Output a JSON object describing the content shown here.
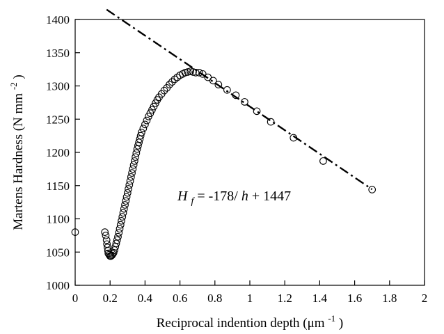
{
  "chart_data": {
    "type": "scatter",
    "title": "",
    "xlabel": {
      "main": "Reciprocal indention depth (μm",
      "sup": "-1",
      "tail": ")"
    },
    "ylabel": {
      "main": "Martens Hardness (N mm",
      "sup": "-2",
      "tail": ")"
    },
    "xlim": [
      0,
      2
    ],
    "ylim": [
      1000,
      1400
    ],
    "x_ticks": [
      0,
      0.2,
      0.4,
      0.6,
      0.8,
      1,
      1.2,
      1.4,
      1.6,
      1.8,
      2
    ],
    "x_tick_labels": [
      "0",
      "0.2",
      "0.4",
      "0.6",
      "0.8",
      "1",
      "1.2",
      "1.4",
      "1.6",
      "1.8",
      "2"
    ],
    "y_ticks": [
      1000,
      1050,
      1100,
      1150,
      1200,
      1250,
      1300,
      1350,
      1400
    ],
    "y_tick_labels": [
      "1000",
      "1050",
      "1100",
      "1150",
      "1200",
      "1250",
      "1300",
      "1350",
      "1400"
    ],
    "grid": false,
    "legend": "none",
    "series": [
      {
        "marker": "open-circle",
        "points": [
          [
            0.0,
            1080
          ],
          [
            0.17,
            1080
          ],
          [
            0.175,
            1075
          ],
          [
            0.18,
            1068
          ],
          [
            0.182,
            1062
          ],
          [
            0.185,
            1057
          ],
          [
            0.188,
            1052
          ],
          [
            0.19,
            1048
          ],
          [
            0.195,
            1046
          ],
          [
            0.2,
            1044
          ],
          [
            0.205,
            1044
          ],
          [
            0.21,
            1045
          ],
          [
            0.215,
            1047
          ],
          [
            0.22,
            1049
          ],
          [
            0.225,
            1053
          ],
          [
            0.23,
            1058
          ],
          [
            0.235,
            1063
          ],
          [
            0.24,
            1068
          ],
          [
            0.245,
            1073
          ],
          [
            0.25,
            1079
          ],
          [
            0.255,
            1085
          ],
          [
            0.26,
            1091
          ],
          [
            0.265,
            1097
          ],
          [
            0.27,
            1103
          ],
          [
            0.275,
            1109
          ],
          [
            0.28,
            1115
          ],
          [
            0.285,
            1121
          ],
          [
            0.29,
            1127
          ],
          [
            0.295,
            1133
          ],
          [
            0.3,
            1139
          ],
          [
            0.305,
            1145
          ],
          [
            0.31,
            1151
          ],
          [
            0.315,
            1157
          ],
          [
            0.32,
            1163
          ],
          [
            0.325,
            1169
          ],
          [
            0.33,
            1175
          ],
          [
            0.335,
            1181
          ],
          [
            0.34,
            1187
          ],
          [
            0.345,
            1193
          ],
          [
            0.35,
            1199
          ],
          [
            0.355,
            1205
          ],
          [
            0.36,
            1210
          ],
          [
            0.365,
            1215
          ],
          [
            0.37,
            1220
          ],
          [
            0.375,
            1225
          ],
          [
            0.38,
            1230
          ],
          [
            0.39,
            1236
          ],
          [
            0.4,
            1242
          ],
          [
            0.41,
            1248
          ],
          [
            0.42,
            1254
          ],
          [
            0.43,
            1259
          ],
          [
            0.44,
            1264
          ],
          [
            0.45,
            1269
          ],
          [
            0.46,
            1274
          ],
          [
            0.47,
            1279
          ],
          [
            0.48,
            1283
          ],
          [
            0.495,
            1288
          ],
          [
            0.51,
            1293
          ],
          [
            0.525,
            1297
          ],
          [
            0.54,
            1302
          ],
          [
            0.555,
            1306
          ],
          [
            0.57,
            1310
          ],
          [
            0.585,
            1313
          ],
          [
            0.6,
            1316
          ],
          [
            0.615,
            1318
          ],
          [
            0.63,
            1320
          ],
          [
            0.645,
            1321
          ],
          [
            0.66,
            1322
          ],
          [
            0.675,
            1321
          ],
          [
            0.69,
            1320
          ],
          [
            0.71,
            1320
          ],
          [
            0.73,
            1318
          ],
          [
            0.76,
            1313
          ],
          [
            0.79,
            1308
          ],
          [
            0.82,
            1302
          ],
          [
            0.87,
            1294
          ],
          [
            0.92,
            1286
          ],
          [
            0.97,
            1276
          ],
          [
            1.04,
            1262
          ],
          [
            1.12,
            1246
          ],
          [
            1.25,
            1222
          ],
          [
            1.42,
            1187
          ],
          [
            1.7,
            1144
          ]
        ]
      }
    ],
    "fit_line": {
      "style": "dash-dot",
      "slope": -178,
      "intercept": 1447,
      "x_range": [
        0.18,
        1.7
      ]
    },
    "annotations": [
      {
        "var": "H",
        "sub": "f",
        "middle": " = -178/",
        "var2": "h",
        "rest": " + 1447"
      }
    ]
  }
}
